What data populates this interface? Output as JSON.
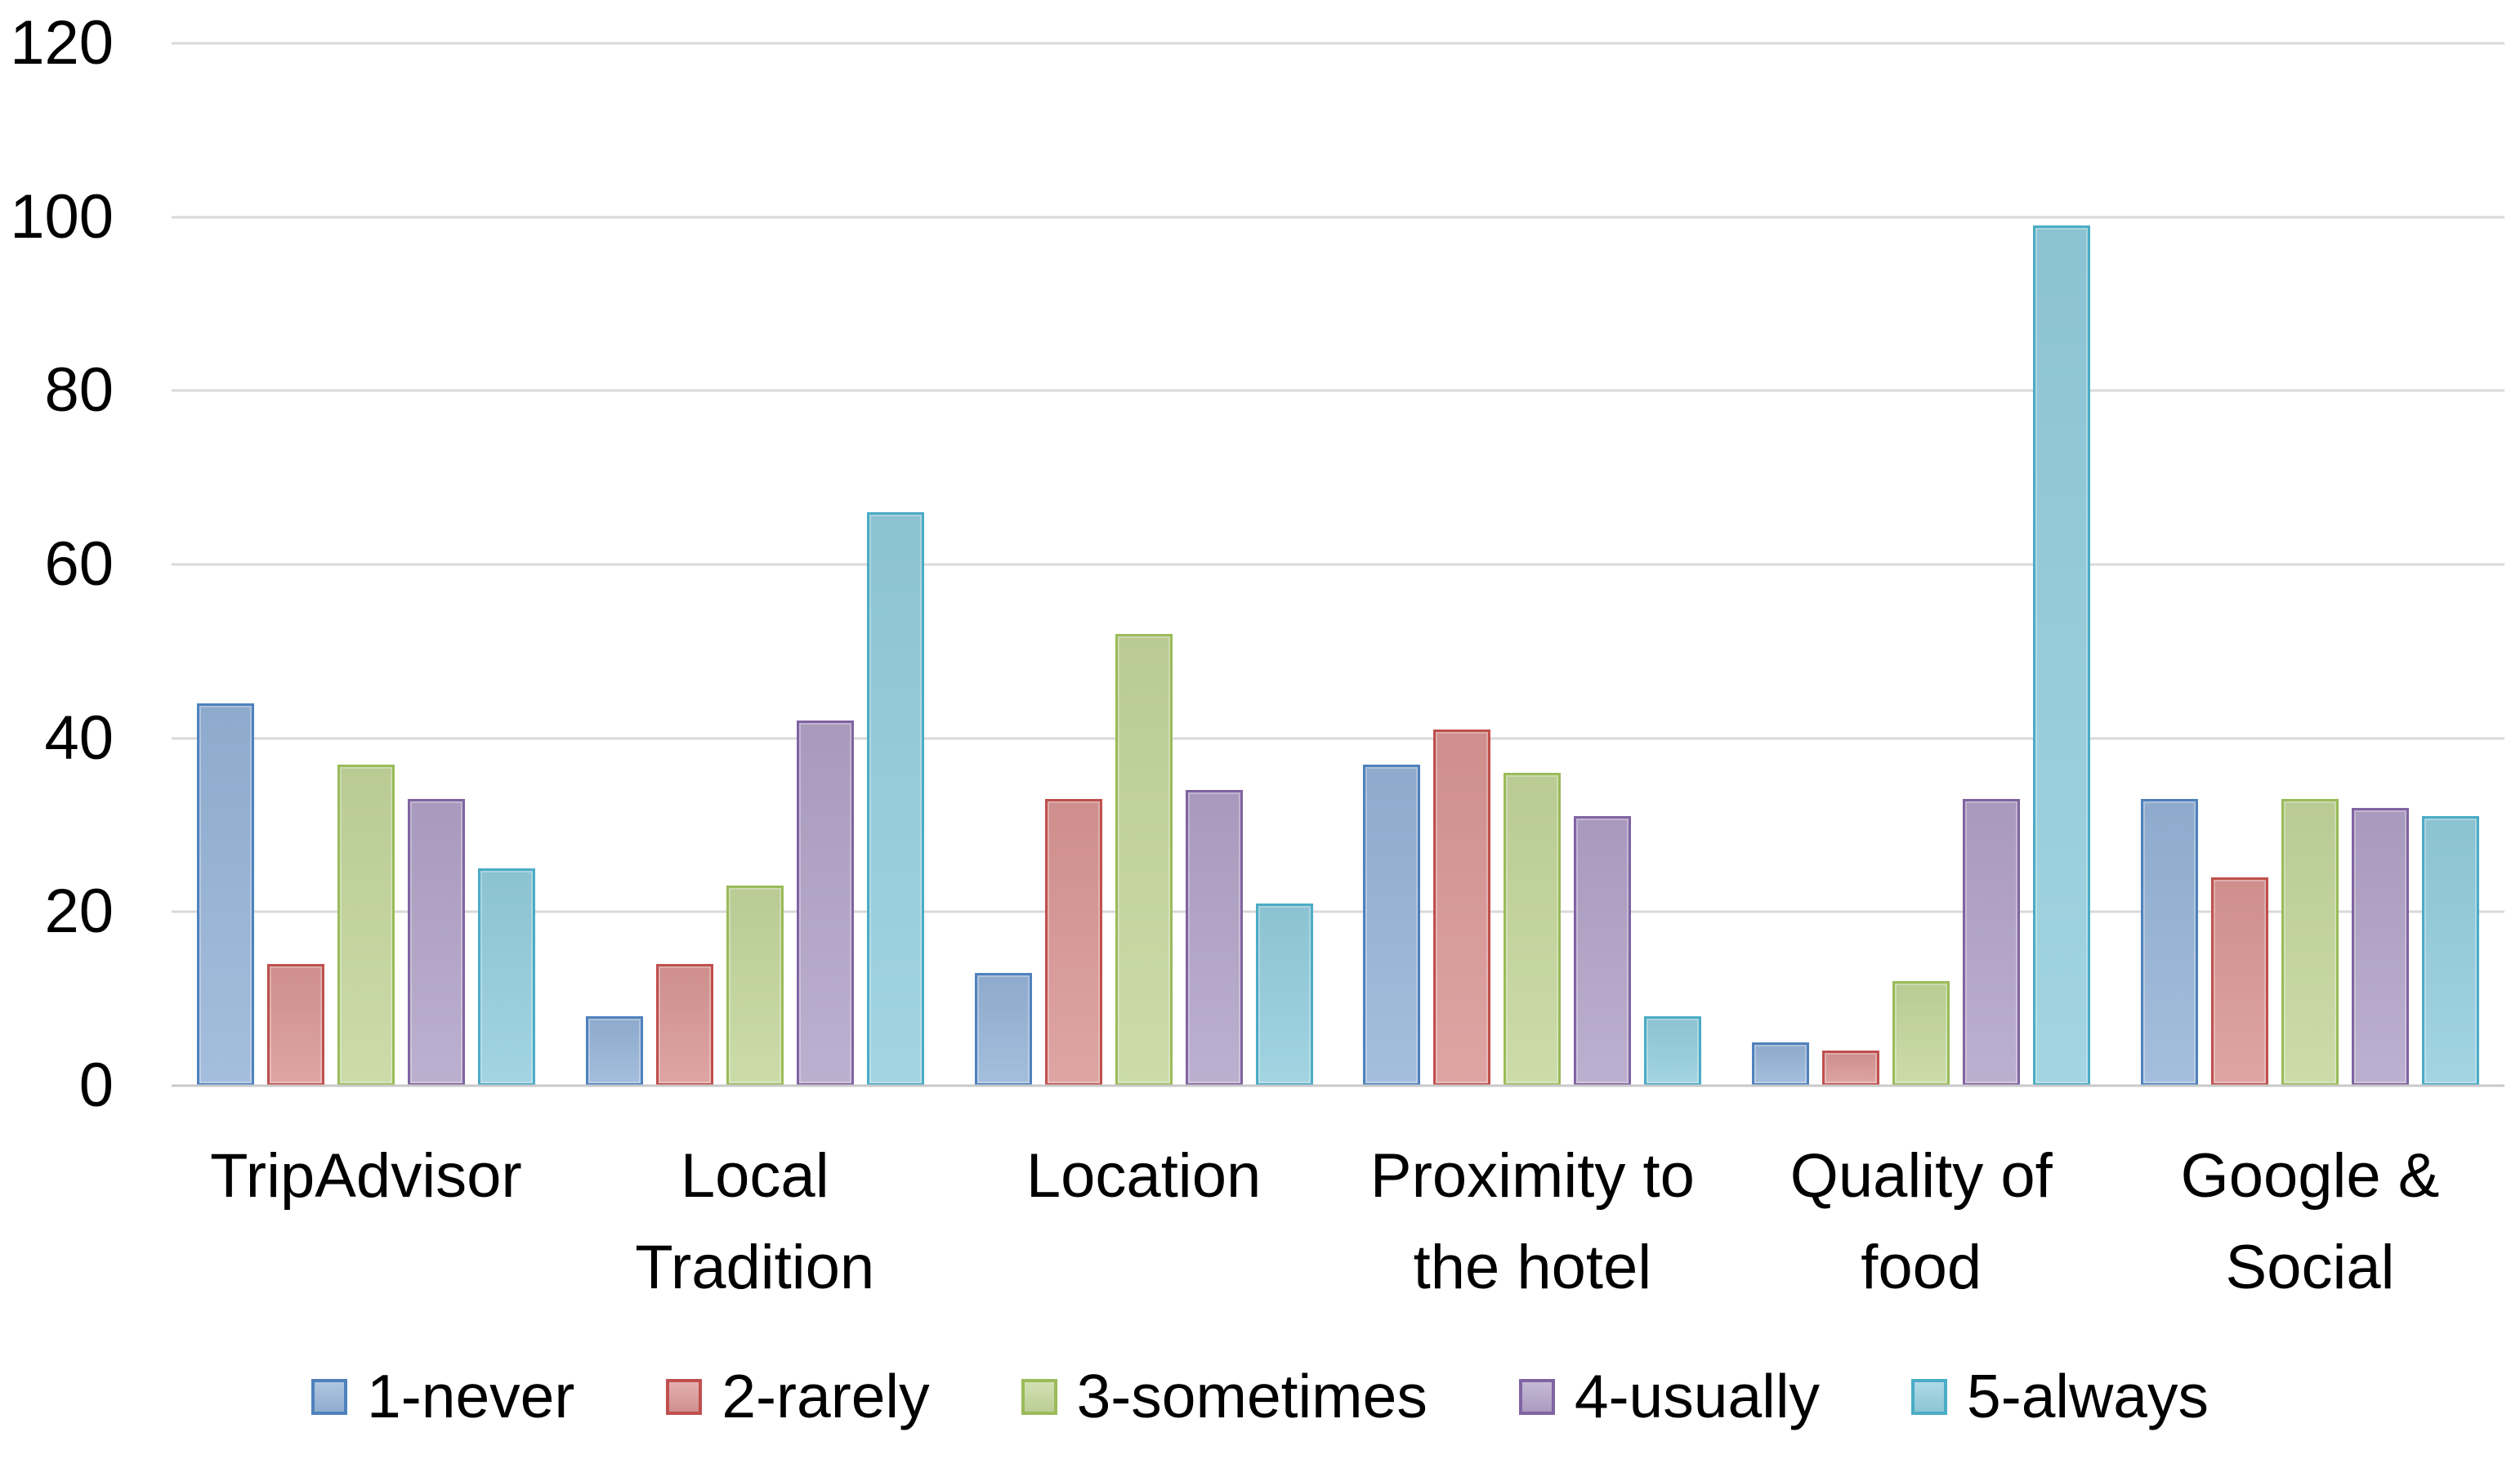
{
  "chart_data": {
    "type": "bar",
    "title": "",
    "xlabel": "",
    "ylabel": "",
    "categories": [
      "TripAdvisor",
      "Local\nTradition",
      "Location",
      "Proximity to\nthe hotel",
      "Quality of\nfood",
      "Google &\nSocial"
    ],
    "series": [
      {
        "name": "1-never",
        "fill": "#95B3D7",
        "border": "#4F81BD",
        "values": [
          44,
          8,
          13,
          37,
          5,
          33
        ]
      },
      {
        "name": "2-rarely",
        "fill": "#D99694",
        "border": "#C0504D",
        "values": [
          14,
          14,
          33,
          41,
          4,
          24
        ]
      },
      {
        "name": "3-sometimes",
        "fill": "#C3D69B",
        "border": "#9BBB59",
        "values": [
          37,
          23,
          52,
          36,
          12,
          33
        ]
      },
      {
        "name": "4-usually",
        "fill": "#B2A2C7",
        "border": "#8064A2",
        "values": [
          33,
          42,
          34,
          31,
          33,
          32
        ]
      },
      {
        "name": "5-always",
        "fill": "#93CDDD",
        "border": "#4BACC6",
        "values": [
          25,
          66,
          21,
          8,
          99,
          31
        ]
      }
    ],
    "yticks": [
      0,
      20,
      40,
      60,
      80,
      100,
      120
    ],
    "ylim": [
      0,
      120
    ],
    "grid": true,
    "legend_position": "bottom",
    "colors": {
      "gridline": "#D9D9D9",
      "axis_line": "#C9C9C9",
      "text": "#000000",
      "background": "#FFFFFF"
    }
  }
}
